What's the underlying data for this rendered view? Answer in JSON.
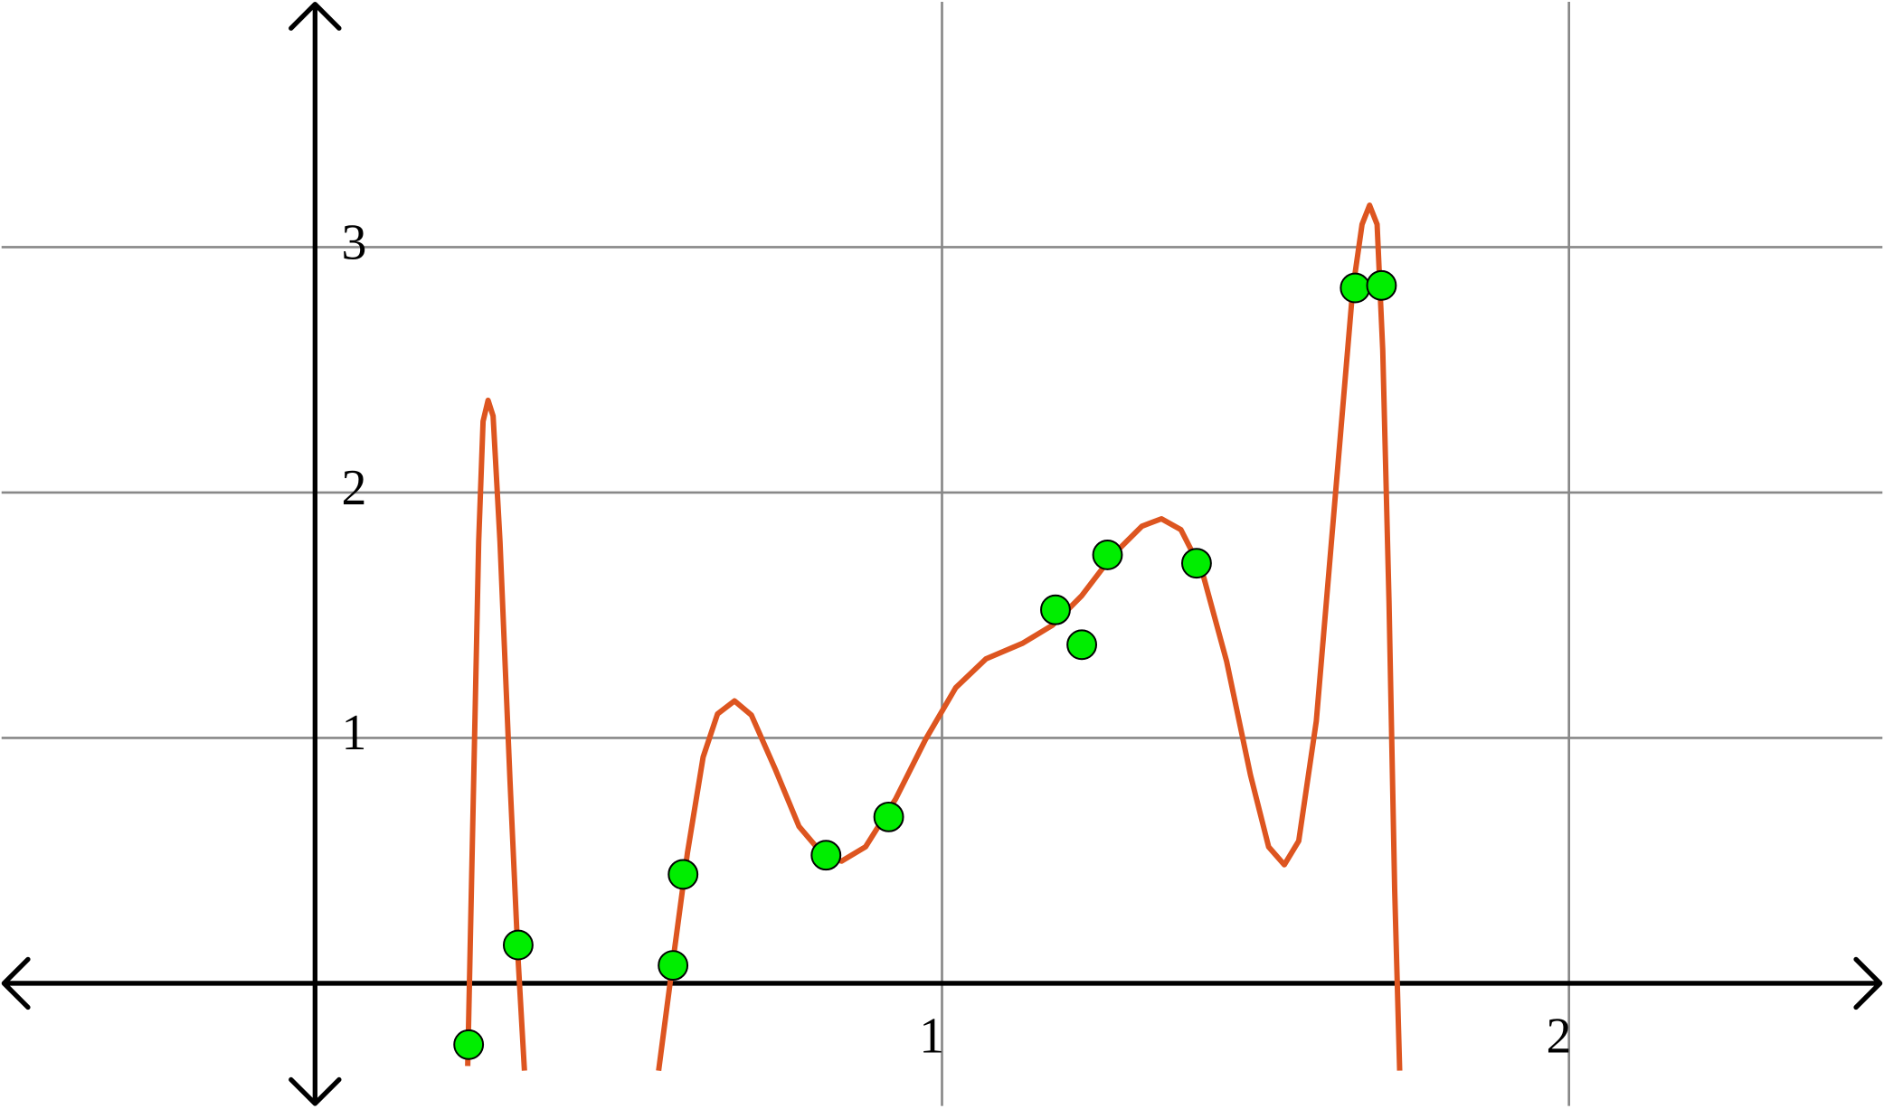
{
  "chart_data": {
    "type": "scatter",
    "xlim": [
      -0.5,
      2.5
    ],
    "ylim": [
      -0.5,
      4.0
    ],
    "xticks": [
      1,
      2
    ],
    "yticks": [
      1,
      2,
      3
    ],
    "grid": true,
    "series": [
      {
        "type": "line",
        "color": "#dd5520",
        "x": [
          0.2435,
          0.251,
          0.261,
          0.268,
          0.276,
          0.284,
          0.295,
          0.311,
          0.324,
          0.334,
          0.45,
          0.548,
          0.571,
          0.594,
          0.619,
          0.642,
          0.669,
          0.696,
          0.734,
          0.772,
          0.811,
          0.84,
          0.878,
          0.926,
          0.974,
          1.022,
          1.07,
          1.128,
          1.176,
          1.223,
          1.271,
          1.319,
          1.35,
          1.381,
          1.415,
          1.454,
          1.492,
          1.521,
          1.546,
          1.569,
          1.597,
          1.626,
          1.655,
          1.67,
          1.682,
          1.694,
          1.703,
          1.713,
          1.722,
          1.73
        ],
        "values": [
          -0.337,
          0.58,
          1.8,
          2.29,
          2.376,
          2.312,
          1.8,
          0.824,
          0.093,
          -0.356,
          null,
          -0.356,
          0.093,
          0.532,
          0.922,
          1.098,
          1.151,
          1.093,
          0.873,
          0.639,
          0.522,
          0.498,
          0.556,
          0.751,
          0.995,
          1.205,
          1.322,
          1.385,
          1.459,
          1.58,
          1.741,
          1.863,
          1.893,
          1.849,
          1.678,
          1.312,
          0.849,
          0.556,
          0.483,
          0.58,
          1.068,
          1.946,
          2.824,
          3.093,
          3.171,
          3.093,
          2.58,
          1.556,
          0.385,
          -0.356
        ]
      },
      {
        "type": "scatter",
        "color": "#00ee00",
        "x": [
          0.245,
          0.324,
          0.571,
          0.587,
          0.815,
          0.915,
          1.181,
          1.223,
          1.264,
          1.406,
          1.659,
          1.701
        ],
        "values": [
          -0.25,
          0.156,
          0.073,
          0.444,
          0.522,
          0.678,
          1.522,
          1.38,
          1.746,
          1.712,
          2.834,
          2.844
        ]
      }
    ]
  }
}
